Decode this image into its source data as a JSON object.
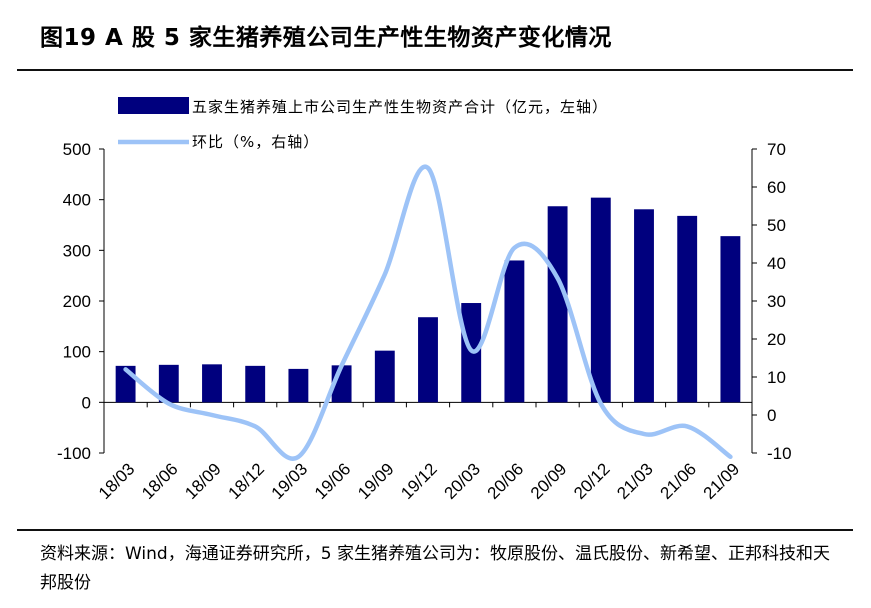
{
  "title": "图19 A 股 5 家生猪养殖公司生产性生物资产变化情况",
  "source": "资料来源：Wind，海通证券研究所，5 家生猪养殖公司为：牧原股份、温氏股份、新希望、正邦科技和天邦股份",
  "colors": {
    "bar": "#00007E",
    "line": "#9DC3F7",
    "axis": "#000000"
  },
  "chart_data": {
    "type": "bar+line",
    "categories": [
      "18/03",
      "18/06",
      "18/09",
      "18/12",
      "19/03",
      "19/06",
      "19/09",
      "19/12",
      "20/03",
      "20/06",
      "20/09",
      "20/12",
      "21/03",
      "21/06",
      "21/09"
    ],
    "series": [
      {
        "name": "五家生猪养殖上市公司生产性生物资产合计（亿元，左轴）",
        "type": "bar",
        "axis": "left",
        "values": [
          72,
          74,
          75,
          72,
          66,
          73,
          102,
          168,
          196,
          280,
          387,
          404,
          381,
          368,
          328
        ]
      },
      {
        "name": "环比（%，右轴）",
        "type": "line",
        "axis": "right",
        "values": [
          12,
          3,
          0,
          -3,
          -11,
          13,
          37,
          65,
          17,
          44,
          36,
          3,
          -5,
          -3,
          -11
        ]
      }
    ],
    "left_axis": {
      "min": -100,
      "max": 500,
      "ticks": [
        500,
        400,
        300,
        200,
        100,
        0,
        -100
      ]
    },
    "right_axis": {
      "min": -10,
      "max": 70,
      "ticks": [
        70,
        60,
        50,
        40,
        30,
        20,
        10,
        0,
        -10
      ]
    },
    "legend_position": "top"
  }
}
